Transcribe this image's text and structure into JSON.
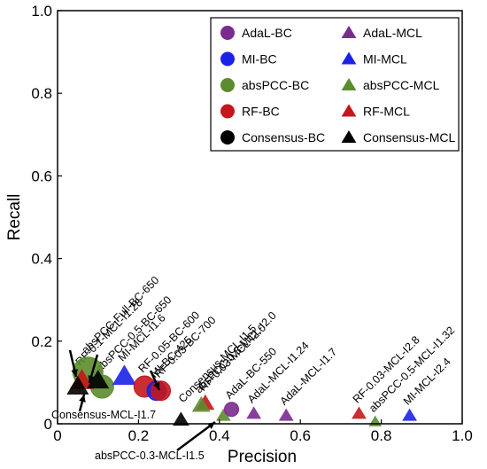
{
  "chart_data": {
    "type": "scatter",
    "title": "",
    "xlabel": "Precision",
    "ylabel": "Recall",
    "xlim": [
      0,
      1.0
    ],
    "ylim": [
      0,
      1.0
    ],
    "xticks": [
      "0",
      "0.2",
      "0.4",
      "0.6",
      "0.8",
      "1.0"
    ],
    "yticks": [
      "0",
      "0.2",
      "0.4",
      "0.6",
      "0.8",
      "1.0"
    ],
    "grid": false,
    "legend_position": "top-right",
    "legend": [
      {
        "name": "AdaL-BC",
        "marker": "circle",
        "color": "#7b2a8e"
      },
      {
        "name": "AdaL-MCL",
        "marker": "triangle",
        "color": "#7b2a8e"
      },
      {
        "name": "MI-BC",
        "marker": "circle",
        "color": "#1a22e8"
      },
      {
        "name": "MI-MCL",
        "marker": "triangle",
        "color": "#1a22e8"
      },
      {
        "name": "absPCC-BC",
        "marker": "circle",
        "color": "#5b8c2e"
      },
      {
        "name": "absPCC-MCL",
        "marker": "triangle",
        "color": "#5b8c2e"
      },
      {
        "name": "RF-BC",
        "marker": "circle",
        "color": "#c4161c"
      },
      {
        "name": "RF-MCL",
        "marker": "triangle",
        "color": "#c4161c"
      },
      {
        "name": "Consensus-BC",
        "marker": "circle",
        "color": "#000000"
      },
      {
        "name": "Consensus-MCL",
        "marker": "triangle",
        "color": "#000000"
      }
    ],
    "points": [
      {
        "method": "absPCC",
        "type": "BC",
        "x": 0.075,
        "y": 0.125,
        "size": 17,
        "label": "absPCC-Full-BC-650"
      },
      {
        "method": "absPCC",
        "type": "BC",
        "x": 0.11,
        "y": 0.09,
        "size": 13,
        "label": "absPCC-0.5-BC-650"
      },
      {
        "method": "RF",
        "type": "MCL",
        "x": 0.06,
        "y": 0.105,
        "size": 13,
        "label": "RF-0.1-MCL-I1.28"
      },
      {
        "method": "Consensus",
        "type": "MCL",
        "x": 0.05,
        "y": 0.09,
        "size": 12,
        "label": ""
      },
      {
        "method": "Consensus",
        "type": "MCL",
        "x": 0.1,
        "y": 0.105,
        "size": 12,
        "label": ""
      },
      {
        "method": "MI",
        "type": "MCL",
        "x": 0.165,
        "y": 0.115,
        "size": 13,
        "label": "MI-MCL-I1.6"
      },
      {
        "method": "RF",
        "type": "BC",
        "x": 0.215,
        "y": 0.09,
        "size": 12,
        "label": "RF-0.05-BC-600"
      },
      {
        "method": "MI",
        "type": "BC",
        "x": 0.245,
        "y": 0.08,
        "size": 11,
        "label": "MI-BC-425"
      },
      {
        "method": "RF",
        "type": "BC",
        "x": 0.255,
        "y": 0.08,
        "size": 11,
        "label": "RF-0.03-BC-700"
      },
      {
        "method": "RF",
        "type": "MCL",
        "x": 0.365,
        "y": 0.05,
        "size": 10,
        "label": "RF-0.03-MCL-I2.0"
      },
      {
        "method": "absPCC",
        "type": "MCL",
        "x": 0.355,
        "y": 0.045,
        "size": 10,
        "label": "absPCC-0.3-MCL-I2.0"
      },
      {
        "method": "Consensus",
        "type": "MCL",
        "x": 0.305,
        "y": 0.01,
        "size": 9,
        "label": ""
      },
      {
        "method": "absPCC",
        "type": "MCL",
        "x": 0.41,
        "y": 0.02,
        "size": 8,
        "label": ""
      },
      {
        "method": "AdaL",
        "type": "BC",
        "x": 0.43,
        "y": 0.035,
        "size": 8,
        "label": "AdaL-BC-550"
      },
      {
        "method": "AdaL",
        "type": "MCL",
        "x": 0.485,
        "y": 0.025,
        "size": 8,
        "label": "AdaL-MCL-I1.24"
      },
      {
        "method": "AdaL",
        "type": "MCL",
        "x": 0.565,
        "y": 0.02,
        "size": 8,
        "label": "AdaL-MCL-I1.7"
      },
      {
        "method": "RF",
        "type": "MCL",
        "x": 0.745,
        "y": 0.025,
        "size": 8,
        "label": "RF-0.03-MCL-I2.8"
      },
      {
        "method": "absPCC",
        "type": "MCL",
        "x": 0.785,
        "y": 0.005,
        "size": 7,
        "label": "absPCC-0.5-MCL-I1.32"
      },
      {
        "method": "MI",
        "type": "MCL",
        "x": 0.87,
        "y": 0.02,
        "size": 8,
        "label": "MI-MCL-I2.4"
      }
    ],
    "annotations": [
      {
        "text": "Consensus-MCL-I1.5",
        "rotated": true
      },
      {
        "text": "Consensus-MCL-I1.7",
        "rotated": false
      },
      {
        "text": "absPCC-0.3-MCL-I1.5",
        "rotated": false
      }
    ]
  }
}
